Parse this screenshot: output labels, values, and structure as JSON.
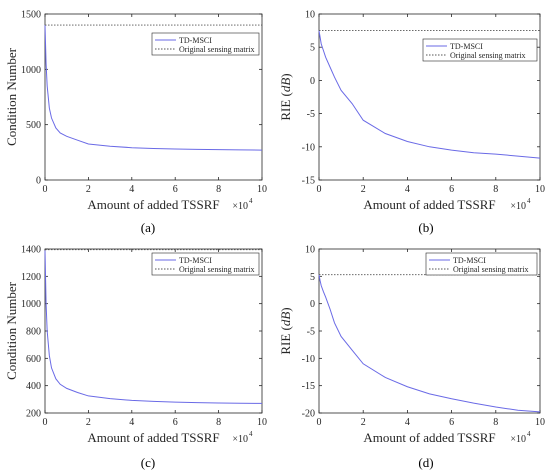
{
  "colors": {
    "series_main": "#6a6ae6",
    "series_ref": "#555555",
    "axis": "#262626",
    "background": "#ffffff"
  },
  "chart_data": [
    {
      "type": "line",
      "caption": "(a)",
      "xlabel": "Amount of added TSSRF",
      "xmultiplier": "×10",
      "xmultiplier_exp": "4",
      "ylabel": "Condition Number",
      "ylabel_unit": "",
      "xlim": [
        0,
        10
      ],
      "ylim": [
        0,
        1500
      ],
      "xticks": [
        0,
        2,
        4,
        6,
        8,
        10
      ],
      "yticks": [
        0,
        500,
        1000,
        1500
      ],
      "legend": "top-right",
      "series": [
        {
          "name": "TD-MSCI",
          "style": "solid",
          "x": [
            0,
            0.05,
            0.1,
            0.2,
            0.3,
            0.5,
            0.7,
            1,
            1.5,
            2,
            3,
            4,
            5,
            6,
            7,
            8,
            9,
            10
          ],
          "y": [
            1400,
            1050,
            850,
            650,
            560,
            470,
            425,
            395,
            360,
            325,
            305,
            292,
            285,
            280,
            277,
            274,
            272,
            270
          ]
        },
        {
          "name": "Original sensing matrix",
          "style": "dotted",
          "x": [
            0,
            10
          ],
          "y": [
            1400,
            1400
          ]
        }
      ]
    },
    {
      "type": "line",
      "caption": "(b)",
      "xlabel": "Amount of added TSSRF",
      "xmultiplier": "×10",
      "xmultiplier_exp": "4",
      "ylabel": "RIE (",
      "ylabel_unit": "dB",
      "xlim": [
        0,
        10
      ],
      "ylim": [
        -15,
        10
      ],
      "xticks": [
        0,
        2,
        4,
        6,
        8,
        10
      ],
      "yticks": [
        -15,
        -10,
        -5,
        0,
        5,
        10
      ],
      "legend": "top-right",
      "series": [
        {
          "name": "TD-MSCI",
          "style": "solid",
          "x": [
            0,
            0.05,
            0.1,
            0.2,
            0.3,
            0.5,
            0.7,
            1,
            1.5,
            2,
            3,
            4,
            5,
            6,
            7,
            8,
            9,
            10
          ],
          "y": [
            7.5,
            6.5,
            5.5,
            4.5,
            3.5,
            2.0,
            0.5,
            -1.5,
            -3.5,
            -6.0,
            -8.0,
            -9.2,
            -10.0,
            -10.5,
            -10.9,
            -11.1,
            -11.4,
            -11.7
          ]
        },
        {
          "name": "Original sensing matrix",
          "style": "dotted",
          "x": [
            0,
            10
          ],
          "y": [
            7.5,
            7.5
          ]
        }
      ]
    },
    {
      "type": "line",
      "caption": "(c)",
      "xlabel": "Amount of added TSSRF",
      "xmultiplier": "×10",
      "xmultiplier_exp": "4",
      "ylabel": "Condition Number",
      "ylabel_unit": "",
      "xlim": [
        0,
        10
      ],
      "ylim": [
        200,
        1400
      ],
      "xticks": [
        0,
        2,
        4,
        6,
        8,
        10
      ],
      "yticks": [
        200,
        400,
        600,
        800,
        1000,
        1200,
        1400
      ],
      "legend": "top-right",
      "series": [
        {
          "name": "TD-MSCI",
          "style": "solid",
          "x": [
            0,
            0.05,
            0.1,
            0.2,
            0.3,
            0.5,
            0.7,
            1,
            1.5,
            2,
            3,
            4,
            5,
            6,
            7,
            8,
            9,
            10
          ],
          "y": [
            1390,
            1000,
            800,
            620,
            530,
            450,
            410,
            380,
            350,
            325,
            305,
            292,
            285,
            280,
            276,
            273,
            271,
            270
          ]
        },
        {
          "name": "Original sensing matrix",
          "style": "dotted",
          "x": [
            0,
            10
          ],
          "y": [
            1395,
            1395
          ]
        }
      ]
    },
    {
      "type": "line",
      "caption": "(d)",
      "xlabel": "Amount of added TSSRF",
      "xmultiplier": "×10",
      "xmultiplier_exp": "4",
      "ylabel": "RIE (",
      "ylabel_unit": "dB",
      "xlim": [
        0,
        10
      ],
      "ylim": [
        -20,
        10
      ],
      "xticks": [
        0,
        2,
        4,
        6,
        8,
        10
      ],
      "yticks": [
        -20,
        -15,
        -10,
        -5,
        0,
        5,
        10
      ],
      "legend": "top-right",
      "series": [
        {
          "name": "TD-MSCI",
          "style": "solid",
          "x": [
            0,
            0.05,
            0.1,
            0.2,
            0.3,
            0.5,
            0.7,
            1,
            1.5,
            2,
            3,
            4,
            5,
            6,
            7,
            8,
            9,
            10
          ],
          "y": [
            5.3,
            4.2,
            3.3,
            2.2,
            1.2,
            -1.0,
            -3.5,
            -6.0,
            -8.5,
            -11.0,
            -13.5,
            -15.2,
            -16.5,
            -17.4,
            -18.2,
            -18.9,
            -19.5,
            -19.8
          ]
        },
        {
          "name": "Original sensing matrix",
          "style": "dotted",
          "x": [
            0,
            10
          ],
          "y": [
            5.3,
            5.3
          ]
        }
      ]
    }
  ]
}
